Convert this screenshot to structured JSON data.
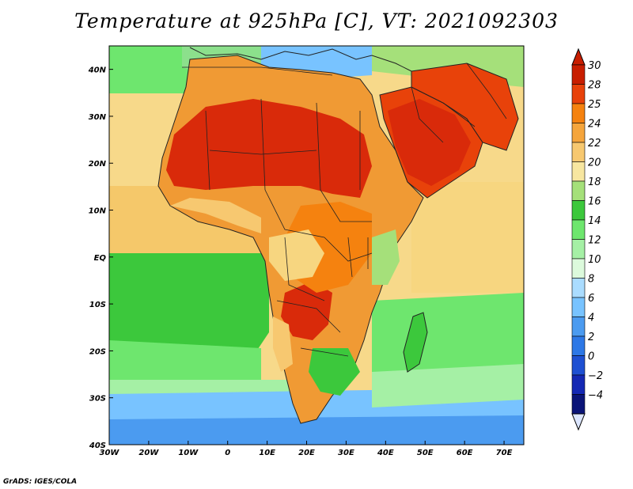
{
  "title": "Temperature at 925hPa [C], VT: 2021092303",
  "credit": "GrADS: IGES/COLA",
  "map": {
    "lon_ticks": [
      "30W",
      "20W",
      "10W",
      "0",
      "10E",
      "20E",
      "30E",
      "40E",
      "50E",
      "60E",
      "70E"
    ],
    "lat_ticks": [
      "40N",
      "30N",
      "20N",
      "10N",
      "EQ",
      "10S",
      "20S",
      "30S",
      "40S"
    ],
    "lon_range": [
      -30,
      75
    ],
    "lat_range": [
      -40,
      45
    ]
  },
  "colorbar": {
    "labels": [
      "30",
      "28",
      "25",
      "24",
      "22",
      "20",
      "18",
      "16",
      "14",
      "12",
      "10",
      "8",
      "6",
      "4",
      "2",
      "0",
      "−2",
      "−4"
    ],
    "colors": [
      "#c81e00",
      "#e8420a",
      "#f5820f",
      "#f5a53c",
      "#f7c870",
      "#f7e6a0",
      "#a5e07a",
      "#3cc83c",
      "#6ee66e",
      "#a5f0a5",
      "#dcfadc",
      "#aadcff",
      "#78c3ff",
      "#4b9bf0",
      "#2d78e6",
      "#1e50d2",
      "#1428b4",
      "#0a1478"
    ],
    "over_color": "#c81e00",
    "under_color": "#dce6ff"
  },
  "colors": {
    "ocean_cold": "#4b9bf0",
    "ocean_cool": "#a5f0a5",
    "ocean_mild": "#6ee66e",
    "ocean_warm": "#f7c870",
    "land_hot": "#d92a0a",
    "land_warm": "#f09a34",
    "land_mild": "#f7d680",
    "europe_cool": "#8ce08c"
  }
}
